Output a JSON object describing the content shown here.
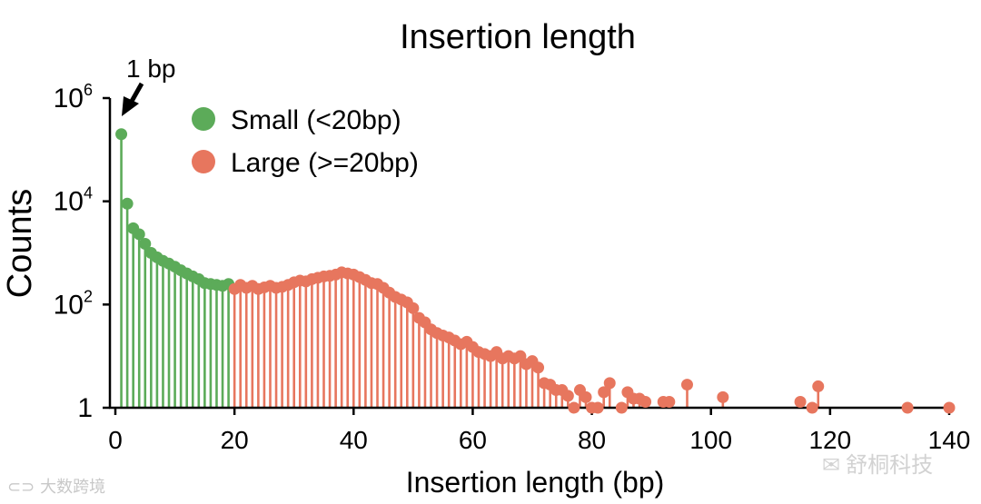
{
  "chart_data": {
    "type": "lollipop",
    "title": "Insertion length",
    "xlabel": "Insertion length (bp)",
    "ylabel": "Counts",
    "yscale": "log",
    "ylim": [
      1,
      1000000
    ],
    "xlim": [
      0,
      140
    ],
    "xticks": [
      0,
      20,
      40,
      60,
      80,
      100,
      120,
      140
    ],
    "yticks": [
      {
        "base": "1",
        "exp": ""
      },
      {
        "base": "10",
        "exp": "2"
      },
      {
        "base": "10",
        "exp": "4"
      },
      {
        "base": "10",
        "exp": "6"
      }
    ],
    "annotation": {
      "text": "1 bp",
      "x": 1
    },
    "series": [
      {
        "name": "Small (<20bp)",
        "color": "#5cab59",
        "points": [
          [
            1,
            200000
          ],
          [
            2,
            9000
          ],
          [
            3,
            3000
          ],
          [
            4,
            2300
          ],
          [
            5,
            1500
          ],
          [
            6,
            1000
          ],
          [
            7,
            820
          ],
          [
            8,
            700
          ],
          [
            9,
            620
          ],
          [
            10,
            540
          ],
          [
            11,
            460
          ],
          [
            12,
            400
          ],
          [
            13,
            350
          ],
          [
            14,
            310
          ],
          [
            15,
            260
          ],
          [
            16,
            250
          ],
          [
            17,
            240
          ],
          [
            18,
            230
          ],
          [
            19,
            250
          ]
        ]
      },
      {
        "name": "Large (>=20bp)",
        "color": "#e7765e",
        "points": [
          [
            20,
            200
          ],
          [
            21,
            240
          ],
          [
            22,
            210
          ],
          [
            23,
            230
          ],
          [
            24,
            200
          ],
          [
            25,
            215
          ],
          [
            26,
            230
          ],
          [
            27,
            210
          ],
          [
            28,
            220
          ],
          [
            29,
            240
          ],
          [
            30,
            270
          ],
          [
            31,
            290
          ],
          [
            32,
            280
          ],
          [
            33,
            310
          ],
          [
            34,
            330
          ],
          [
            35,
            350
          ],
          [
            36,
            360
          ],
          [
            37,
            380
          ],
          [
            38,
            420
          ],
          [
            39,
            400
          ],
          [
            40,
            380
          ],
          [
            41,
            340
          ],
          [
            42,
            300
          ],
          [
            43,
            260
          ],
          [
            44,
            250
          ],
          [
            45,
            210
          ],
          [
            46,
            170
          ],
          [
            47,
            140
          ],
          [
            48,
            125
          ],
          [
            49,
            110
          ],
          [
            50,
            85
          ],
          [
            51,
            55
          ],
          [
            52,
            45
          ],
          [
            53,
            33
          ],
          [
            54,
            28
          ],
          [
            55,
            25
          ],
          [
            56,
            23
          ],
          [
            57,
            20
          ],
          [
            58,
            17
          ],
          [
            59,
            19
          ],
          [
            60,
            15
          ],
          [
            61,
            12
          ],
          [
            62,
            11
          ],
          [
            63,
            10
          ],
          [
            64,
            12
          ],
          [
            65,
            9
          ],
          [
            66,
            10
          ],
          [
            67,
            9
          ],
          [
            68,
            10
          ],
          [
            69,
            7
          ],
          [
            70,
            8
          ],
          [
            71,
            6
          ],
          [
            72,
            3
          ],
          [
            73,
            2.8
          ],
          [
            74,
            2.2
          ],
          [
            75,
            2.2
          ],
          [
            76,
            1.7
          ],
          [
            77,
            1
          ],
          [
            78,
            2.2
          ],
          [
            79,
            1.6
          ],
          [
            80,
            1
          ],
          [
            81,
            1
          ],
          [
            82,
            2
          ],
          [
            83,
            3
          ],
          [
            85,
            1
          ],
          [
            86,
            2
          ],
          [
            87,
            1.5
          ],
          [
            88,
            1.5
          ],
          [
            89,
            1.3
          ],
          [
            92,
            1.3
          ],
          [
            93,
            1.3
          ],
          [
            96,
            2.8
          ],
          [
            102,
            1.6
          ],
          [
            115,
            1.3
          ],
          [
            117,
            1
          ],
          [
            118,
            2.6
          ],
          [
            133,
            1
          ],
          [
            140,
            1
          ]
        ]
      }
    ]
  },
  "watermarks": {
    "left": "大数跨境",
    "right": "舒桐科技"
  }
}
